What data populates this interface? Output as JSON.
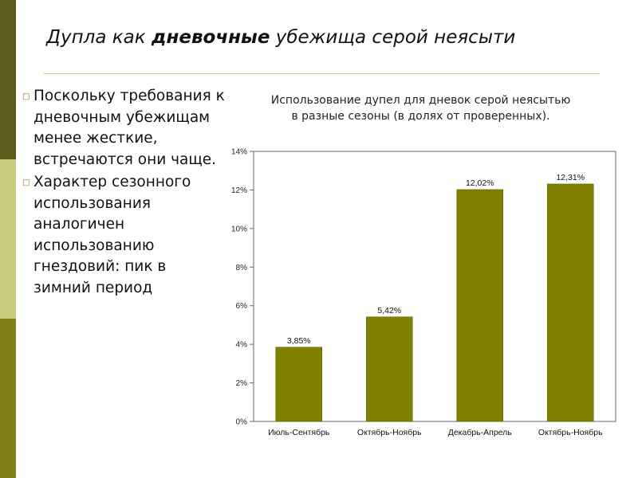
{
  "slide": {
    "title_pre": "Дупла как ",
    "title_bold": "дневочные",
    "title_post": " убежища серой неясыти",
    "bullets": [
      "Поскольку требования к дневочным убежищам менее жесткие, встречаются они чаще.",
      "Характер сезонного использования аналогичен использованию гнездовий: пик в зимний период"
    ]
  },
  "colors": {
    "bar": "#808000",
    "stripe_dark": "#5c5c1e",
    "stripe_light": "#c9cc7a",
    "stripe_mid": "#7e7f17"
  },
  "chart_data": {
    "type": "bar",
    "title_line1": "Использование дупел для дневок серой неясытью",
    "title_line2": "в разные сезоны (в долях от проверенных).",
    "categories": [
      "Июль-Сентябрь",
      "Октябрь-Ноябрь",
      "Декабрь-Апрель",
      "Октябрь-Ноябрь"
    ],
    "values": [
      3.85,
      5.42,
      12.02,
      12.31
    ],
    "data_labels": [
      "3,85%",
      "5,42%",
      "12,02%",
      "12,31%"
    ],
    "ylim": [
      0,
      14
    ],
    "yticks": [
      0,
      2,
      4,
      6,
      8,
      10,
      12,
      14
    ],
    "ytick_labels": [
      "0%",
      "2%",
      "4%",
      "6%",
      "8%",
      "10%",
      "12%",
      "14%"
    ],
    "grid": false,
    "legend": "none"
  }
}
